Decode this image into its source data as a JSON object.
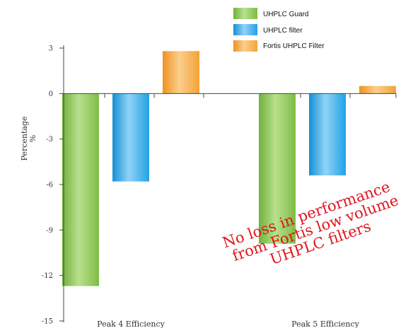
{
  "chart_data": {
    "type": "bar",
    "categories": [
      "Peak 4 Efficiency",
      "Peak 5 Efficiency"
    ],
    "series": [
      {
        "name": "UHPLC Guard",
        "values": [
          -12.7,
          -9.9
        ],
        "color": "#8cc751"
      },
      {
        "name": "UHPLC filter",
        "values": [
          -5.8,
          -5.4
        ],
        "color": "#2aa6e6"
      },
      {
        "name": "Fortis UHPLC Filter",
        "values": [
          2.8,
          0.5
        ],
        "color": "#f5a53a"
      }
    ],
    "ylabel_lines": [
      "Percentage",
      "%"
    ],
    "ylim": [
      -15,
      3
    ],
    "yticks": [
      3,
      0,
      -3,
      -6,
      -9,
      -12,
      -15
    ],
    "grid": false,
    "legend": "top-right",
    "annotation": [
      "No loss in performance",
      "from Fortis low volume",
      "UHPLC filters"
    ],
    "annotation_color": "#e0151c"
  }
}
